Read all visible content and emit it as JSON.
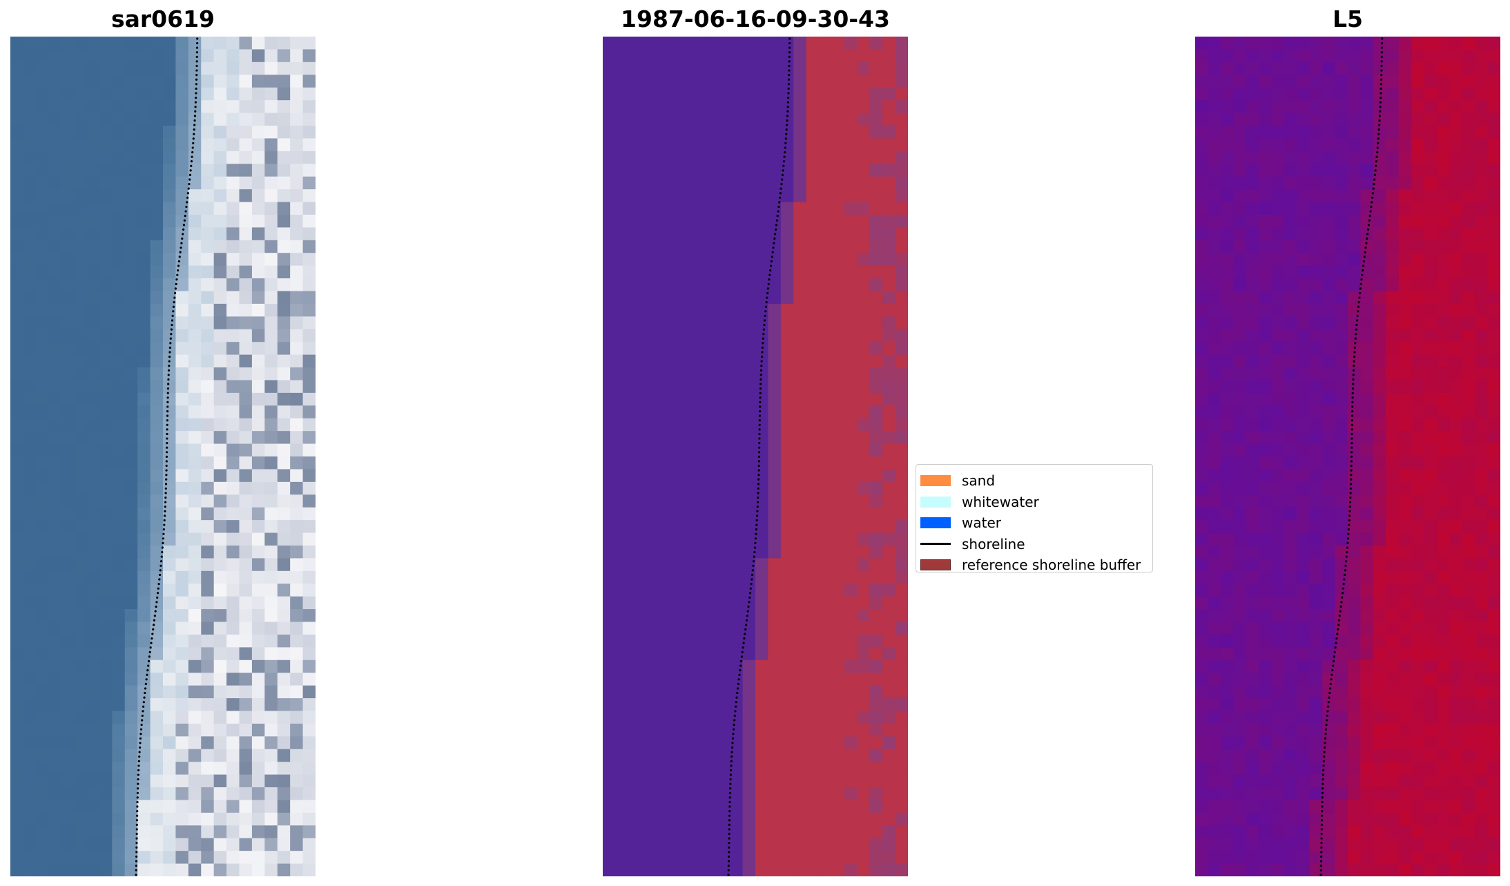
{
  "panels": [
    {
      "title": "sar0619"
    },
    {
      "title": "1987-06-16-09-30-43"
    },
    {
      "title": "L5"
    }
  ],
  "legend": {
    "items": [
      {
        "label": "sand",
        "kind": "patch",
        "color": "#ff8c40"
      },
      {
        "label": "whitewater",
        "kind": "patch",
        "color": "#c6fcfd"
      },
      {
        "label": "water",
        "kind": "patch",
        "color": "#0060ff"
      },
      {
        "label": "shoreline",
        "kind": "line",
        "color": "#000000"
      },
      {
        "label": "reference shoreline buffer",
        "kind": "patch",
        "color": "#a03a3a"
      }
    ]
  },
  "colors": {
    "ocean_rgb": "#3c6893",
    "classified_water": "#552398",
    "classified_sand": "#b9334a",
    "buffer_overlay": "#8a3f7e",
    "index_low": "#5b0fa3",
    "index_high": "#c2062f",
    "shoreline_dots": "#000000"
  }
}
